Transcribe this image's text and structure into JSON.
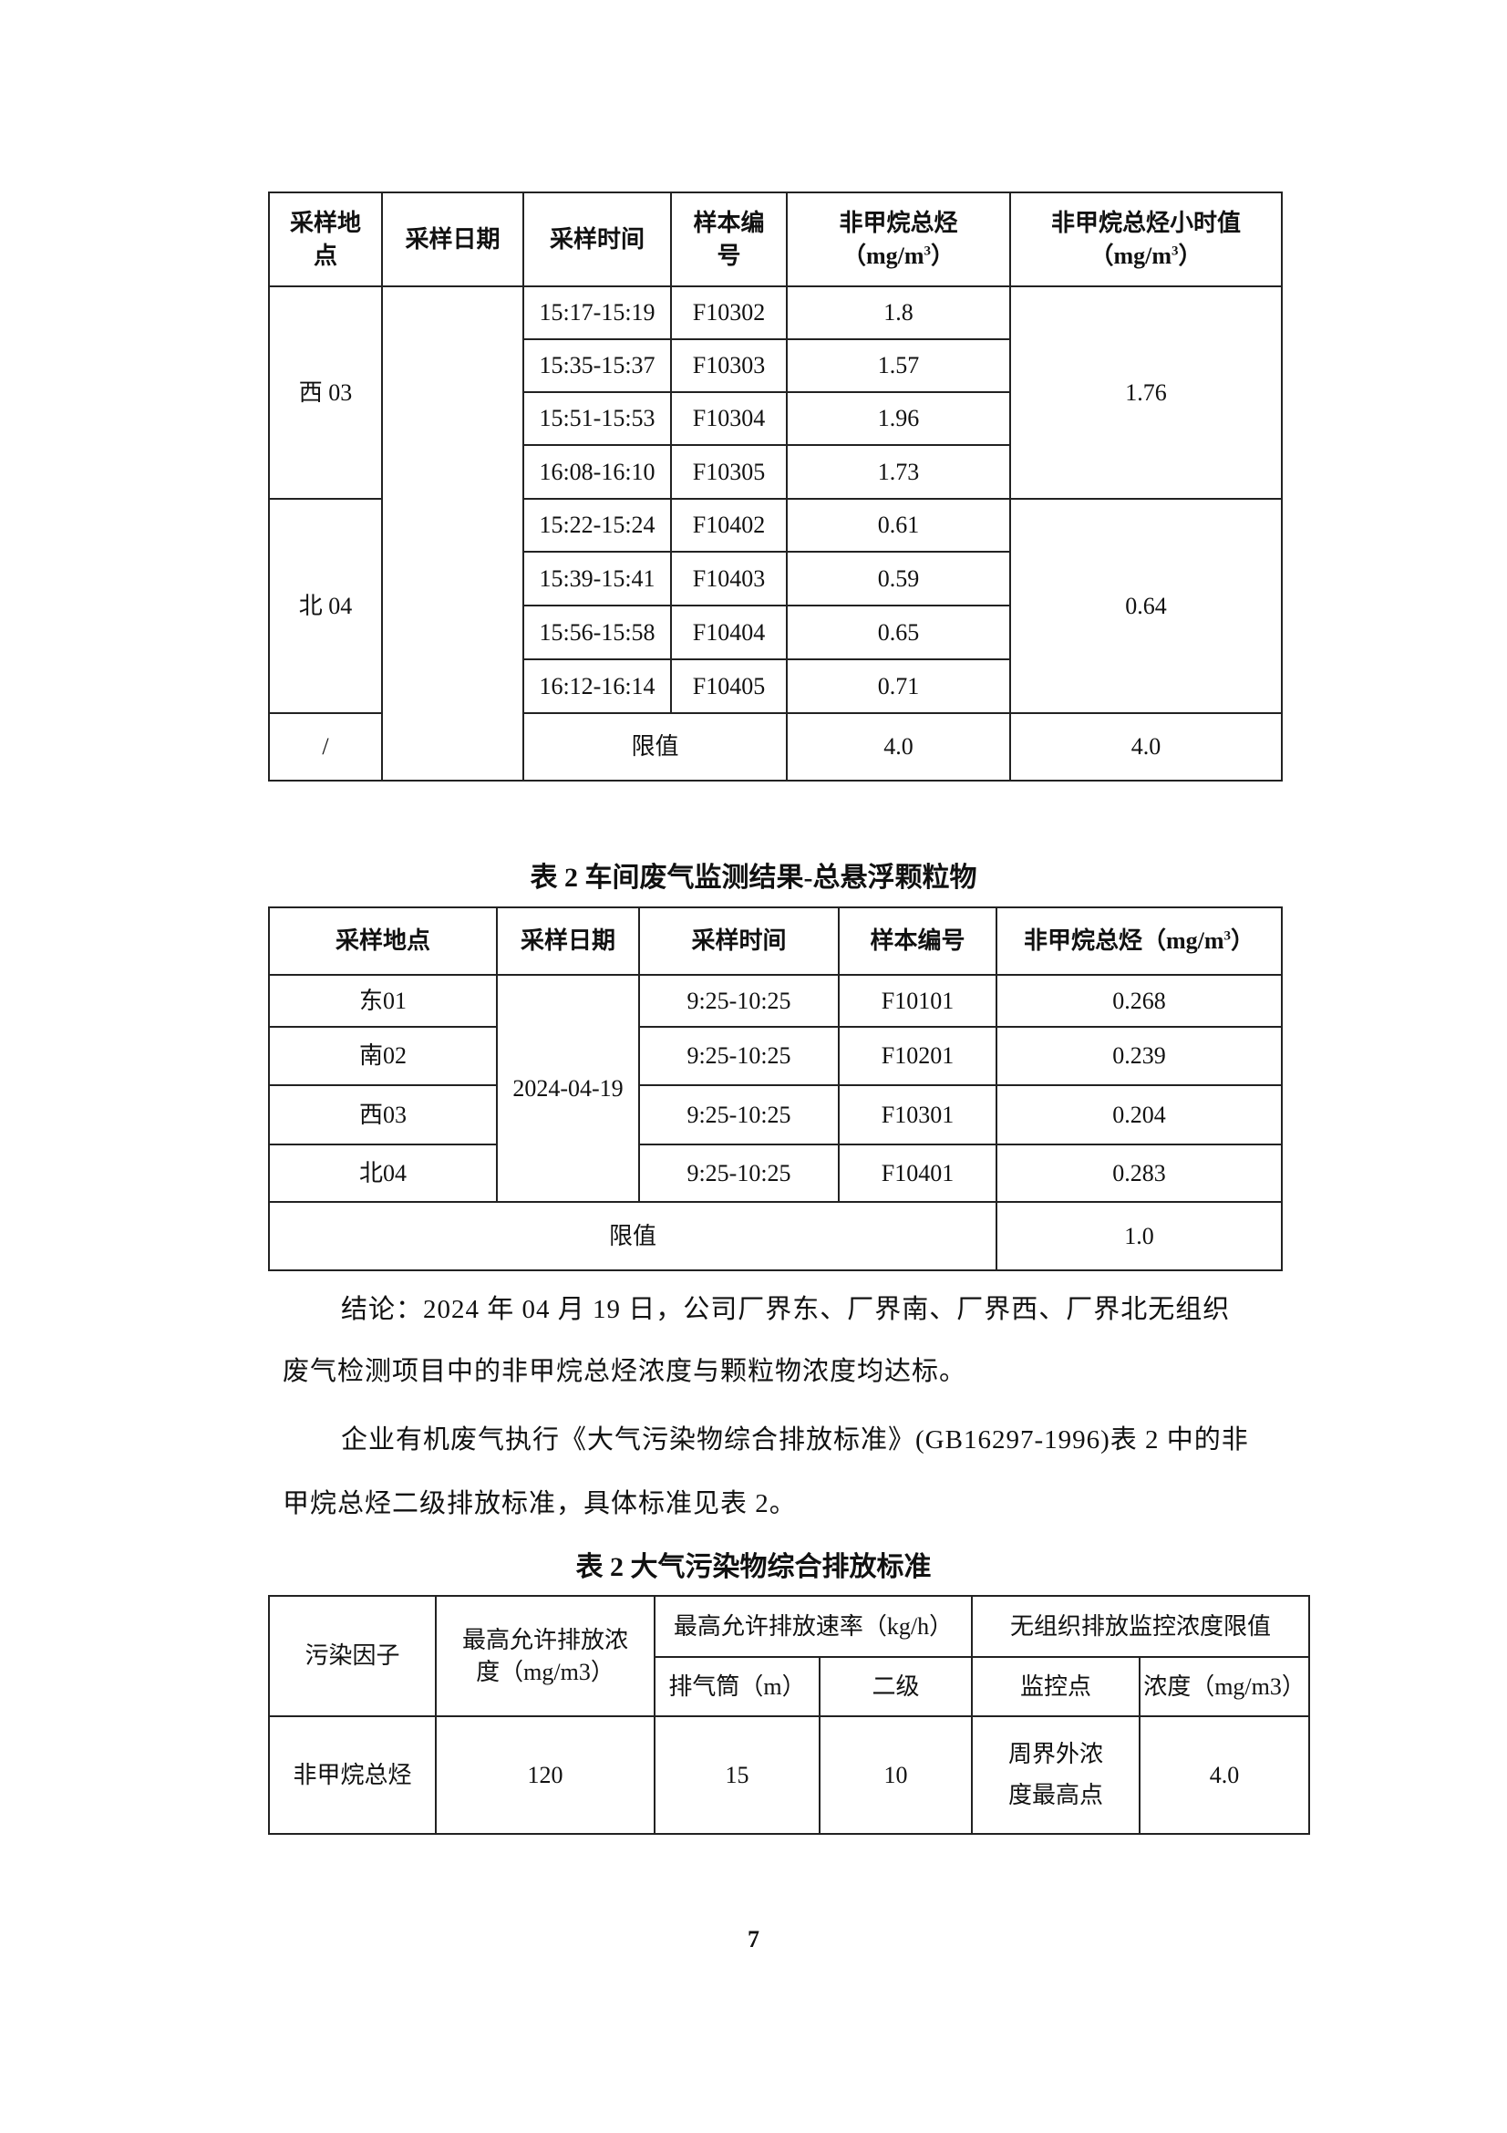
{
  "table1": {
    "headers": {
      "site_a": "采样地",
      "site_b": "点",
      "date": "采样日期",
      "time": "采样时间",
      "sample_a": "样本编",
      "sample_b": "号",
      "nmhc": "非甲烷总烃",
      "nmhc_unit": "（mg/m",
      "hourly": "非甲烷总烃小时值",
      "hourly_unit": "（mg/m",
      "sup": "3",
      "close": "）"
    },
    "groups": [
      {
        "site": "西 03",
        "hourly": "1.76",
        "rows": [
          {
            "time": "15:17-15:19",
            "sample": "F10302",
            "value": "1.8"
          },
          {
            "time": "15:35-15:37",
            "sample": "F10303",
            "value": "1.57"
          },
          {
            "time": "15:51-15:53",
            "sample": "F10304",
            "value": "1.96"
          },
          {
            "time": "16:08-16:10",
            "sample": "F10305",
            "value": "1.73"
          }
        ]
      },
      {
        "site": "北 04",
        "hourly": "0.64",
        "rows": [
          {
            "time": "15:22-15:24",
            "sample": "F10402",
            "value": "0.61"
          },
          {
            "time": "15:39-15:41",
            "sample": "F10403",
            "value": "0.59"
          },
          {
            "time": "15:56-15:58",
            "sample": "F10404",
            "value": "0.65"
          },
          {
            "time": "16:12-16:14",
            "sample": "F10405",
            "value": "0.71"
          }
        ]
      }
    ],
    "limit_row": {
      "site": "/",
      "label": "限值",
      "value": "4.0",
      "hourly": "4.0"
    }
  },
  "table2": {
    "title": "表 2  车间废气监测结果-总悬浮颗粒物",
    "headers": {
      "site": "采样地点",
      "date": "采样日期",
      "time": "采样时间",
      "sample": "样本编号",
      "nmhc": "非甲烷总烃（mg/m",
      "sup": "3",
      "close": "）"
    },
    "date": "2024-04-19",
    "rows": [
      {
        "site": "东01",
        "time": "9:25-10:25",
        "sample": "F10101",
        "value": "0.268"
      },
      {
        "site": "南02",
        "time": "9:25-10:25",
        "sample": "F10201",
        "value": "0.239"
      },
      {
        "site": "西03",
        "time": "9:25-10:25",
        "sample": "F10301",
        "value": "0.204"
      },
      {
        "site": "北04",
        "time": "9:25-10:25",
        "sample": "F10401",
        "value": "0.283"
      }
    ],
    "limit_label": "限值",
    "limit_value": "1.0"
  },
  "conclusion": {
    "line1": "结论：2024 年 04 月 19 日，公司厂界东、厂界南、厂界西、厂界北无组织",
    "line2": "废气检测项目中的非甲烷总烃浓度与颗粒物浓度均达标。",
    "line3": "企业有机废气执行《大气污染物综合排放标准》(GB16297-1996)表 2 中的非",
    "line4": "甲烷总烃二级排放标准，具体标准见表 2。"
  },
  "table3": {
    "title": "表 2  大气污染物综合排放标准",
    "headers": {
      "factor": "污染因子",
      "max_conc": "最高允许排放浓度（mg/m3）",
      "max_rate": "最高允许排放速率（kg/h）",
      "fugitive": "无组织排放监控浓度限值",
      "stack": "排气筒（m）",
      "level2": "二级",
      "monitor": "监控点",
      "conc": "浓度（mg/m3）"
    },
    "row": {
      "factor": "非甲烷总烃",
      "max_conc": "120",
      "stack": "15",
      "level2": "10",
      "monitor": "周界外浓度最高点",
      "conc": "4.0"
    }
  },
  "page_number": "7"
}
